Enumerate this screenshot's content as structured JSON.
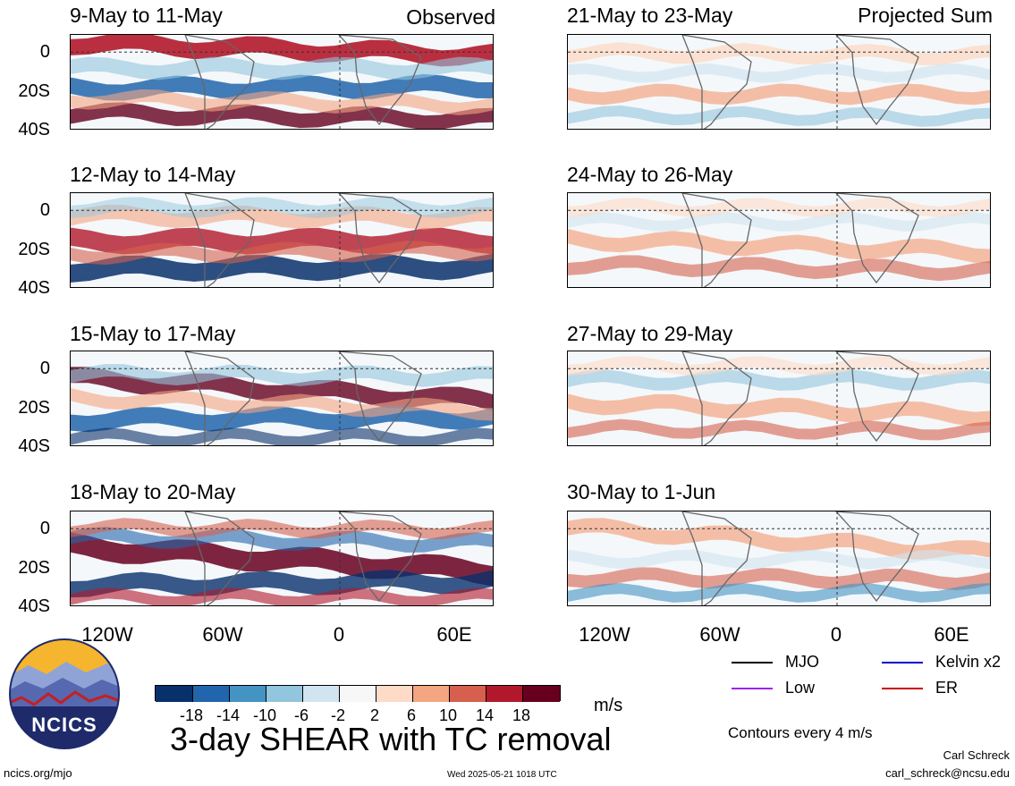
{
  "header": {
    "observed_label": "Observed",
    "projected_label": "Projected Sum"
  },
  "panels_left": [
    {
      "title": "9-May to 11-May"
    },
    {
      "title": "12-May to 14-May"
    },
    {
      "title": "15-May to 17-May"
    },
    {
      "title": "18-May to 20-May"
    }
  ],
  "panels_right": [
    {
      "title": "21-May to 23-May"
    },
    {
      "title": "24-May to 26-May"
    },
    {
      "title": "27-May to 29-May"
    },
    {
      "title": "30-May to 1-Jun"
    }
  ],
  "axes": {
    "y_ticks": [
      "0",
      "20S",
      "40S"
    ],
    "x_ticks": [
      "120W",
      "60W",
      "0",
      "60E"
    ]
  },
  "colorbar": {
    "unit": "m/s",
    "labels": [
      "-18",
      "-14",
      "-10",
      "-6",
      "-2",
      "2",
      "6",
      "10",
      "14",
      "18"
    ],
    "colors": [
      "#08306b",
      "#2166ac",
      "#4393c3",
      "#92c5de",
      "#d1e5f0",
      "#f7f7f7",
      "#fddbc7",
      "#f4a582",
      "#d6604d",
      "#b2182b",
      "#67001f"
    ]
  },
  "legend": {
    "items": [
      {
        "label": "MJO",
        "color": "#000000"
      },
      {
        "label": "Kelvin x2",
        "color": "#0000cc"
      },
      {
        "label": "Low",
        "color": "#a020f0"
      },
      {
        "label": "ER",
        "color": "#cc0000"
      }
    ],
    "contour_note": "Contours every 4 m/s"
  },
  "footer": {
    "main_title": "3-day SHEAR with TC removal",
    "logo_text": "NCICS",
    "url": "ncics.org/mjo",
    "timestamp": "Wed 2025-05-21 1018 UTC",
    "author": "Carl Schreck",
    "email": "carl_schreck@ncsu.edu"
  }
}
